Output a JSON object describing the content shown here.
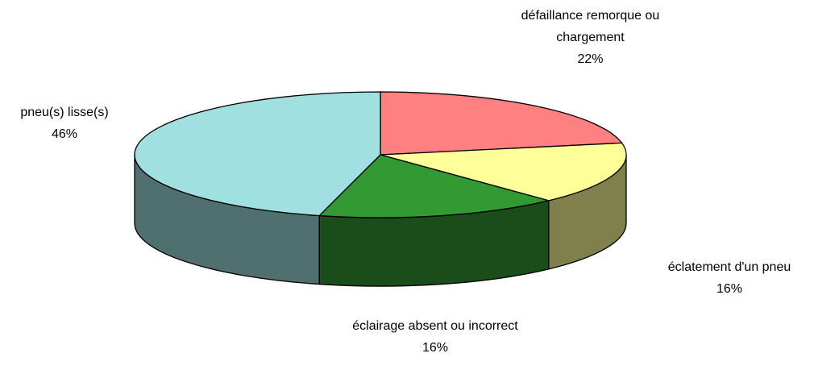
{
  "chart_data": {
    "type": "pie3d",
    "categories": [
      "défaillance remorque ou chargement",
      "éclatement d'un pneu",
      "éclairage absent ou incorrect",
      "pneu(s) lisse(s)"
    ],
    "values": [
      22,
      16,
      16,
      46
    ],
    "value_labels": [
      "22%",
      "16%",
      "16%",
      "46%"
    ],
    "colors": [
      "#ff8080",
      "#ffff99",
      "#339933",
      "#a0e0e0"
    ]
  }
}
